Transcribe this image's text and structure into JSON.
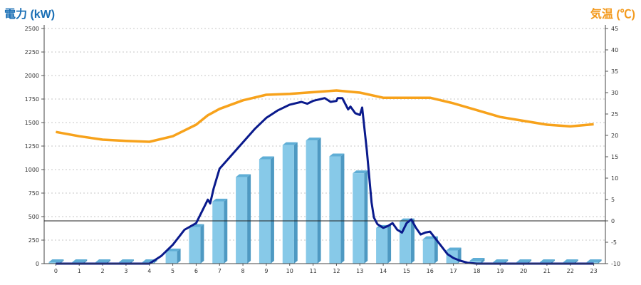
{
  "chart_data": {
    "type": "bar",
    "left_axis_title": "電力 (kW)",
    "right_axis_title": "気温 (℃)",
    "colors": {
      "left_title": "#1a6fb5",
      "right_title": "#f39a1e",
      "bar": "#87c9e8",
      "line_power": "#0a1a8c",
      "line_temp": "#f7a21b"
    },
    "categories": [
      "0",
      "1",
      "2",
      "3",
      "4",
      "5",
      "6",
      "7",
      "8",
      "9",
      "10",
      "11",
      "12",
      "13",
      "14",
      "15",
      "16",
      "17",
      "18",
      "19",
      "20",
      "21",
      "22",
      "23"
    ],
    "left_axis": {
      "min": 0,
      "max": 2500,
      "ticks": [
        "0",
        "250",
        "500",
        "750",
        "1000",
        "1250",
        "1500",
        "1750",
        "2000",
        "2250",
        "2500"
      ]
    },
    "right_axis": {
      "min": -10,
      "max": 45,
      "ticks": [
        "-10",
        "-5",
        "0",
        "5",
        "10",
        "15",
        "20",
        "25",
        "30",
        "35",
        "40",
        "45"
      ]
    },
    "grid": true,
    "series": [
      {
        "kind": "bar",
        "axis": "left",
        "values": [
          15,
          15,
          15,
          15,
          15,
          130,
          390,
          660,
          920,
          1110,
          1260,
          1310,
          1140,
          960,
          380,
          450,
          260,
          140,
          30,
          15,
          15,
          15,
          15,
          15
        ]
      },
      {
        "kind": "line",
        "axis": "left",
        "x": [
          0,
          4,
          4.5,
          5,
          5.5,
          6,
          6.5,
          6.6,
          6.75,
          7,
          7.5,
          8,
          8.5,
          9,
          9.5,
          10,
          10.5,
          10.75,
          11,
          11.5,
          11.75,
          12,
          12.05,
          12.25,
          12.5,
          12.6,
          12.8,
          13,
          13.1,
          13.3,
          13.5,
          13.6,
          13.75,
          14,
          14.2,
          14.4,
          14.6,
          14.8,
          15,
          15.2,
          15.4,
          15.6,
          15.8,
          16,
          16.5,
          16.75,
          17,
          17.3,
          17.6,
          18,
          19,
          20,
          21,
          22,
          23
        ],
        "values": [
          0,
          0,
          80,
          200,
          360,
          430,
          680,
          640,
          800,
          1010,
          1150,
          1290,
          1430,
          1550,
          1630,
          1690,
          1720,
          1700,
          1730,
          1760,
          1720,
          1730,
          1760,
          1760,
          1640,
          1670,
          1600,
          1580,
          1660,
          1200,
          650,
          490,
          420,
          380,
          400,
          430,
          360,
          330,
          430,
          470,
          380,
          310,
          330,
          340,
          180,
          100,
          60,
          30,
          10,
          0,
          0,
          0,
          0,
          0,
          0
        ]
      },
      {
        "kind": "line",
        "axis": "right",
        "x": [
          0,
          1,
          2,
          3,
          4,
          5,
          6,
          6.5,
          7,
          8,
          9,
          10,
          11,
          12,
          13,
          14,
          15,
          16,
          17,
          18,
          19,
          20,
          21,
          22,
          23
        ],
        "values": [
          20.8,
          19.8,
          19.0,
          18.7,
          18.5,
          19.8,
          22.5,
          24.7,
          26.2,
          28.2,
          29.5,
          29.7,
          30.1,
          30.5,
          30.0,
          28.8,
          28.8,
          28.8,
          27.5,
          25.9,
          24.3,
          23.4,
          22.5,
          22.1,
          22.6
        ]
      }
    ]
  }
}
